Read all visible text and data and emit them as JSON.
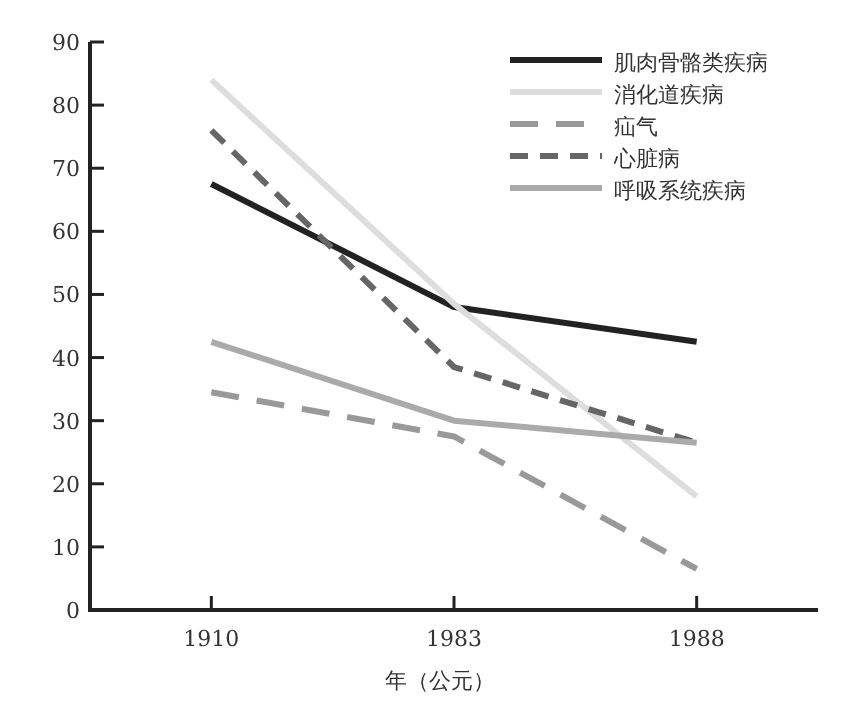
{
  "chart_data": {
    "type": "line",
    "xlabel": "年（公元）",
    "categories": [
      "1910",
      "1983",
      "1988"
    ],
    "ylim": [
      0,
      90
    ],
    "yticks": [
      0,
      10,
      20,
      30,
      40,
      50,
      60,
      70,
      80,
      90
    ],
    "grid": false,
    "legend": "top right",
    "series": [
      {
        "name": "肌肉骨骼类疾病",
        "color": "#222222",
        "line_style": "solid",
        "values": [
          67.5,
          48,
          42.5
        ]
      },
      {
        "name": "消化道疾病",
        "color": "#dddddd",
        "line_style": "solid",
        "values": [
          84,
          48.5,
          18
        ]
      },
      {
        "name": "疝气",
        "color": "#999999",
        "line_style": "dashed",
        "values": [
          34.5,
          27.5,
          6.5
        ]
      },
      {
        "name": "心脏病",
        "color": "#666666",
        "line_style": "dashed",
        "values": [
          76,
          38.5,
          26.5
        ]
      },
      {
        "name": "呼吸系统疾病",
        "color": "#aaaaaa",
        "line_style": "solid",
        "values": [
          42.5,
          30,
          26.5
        ]
      }
    ]
  }
}
